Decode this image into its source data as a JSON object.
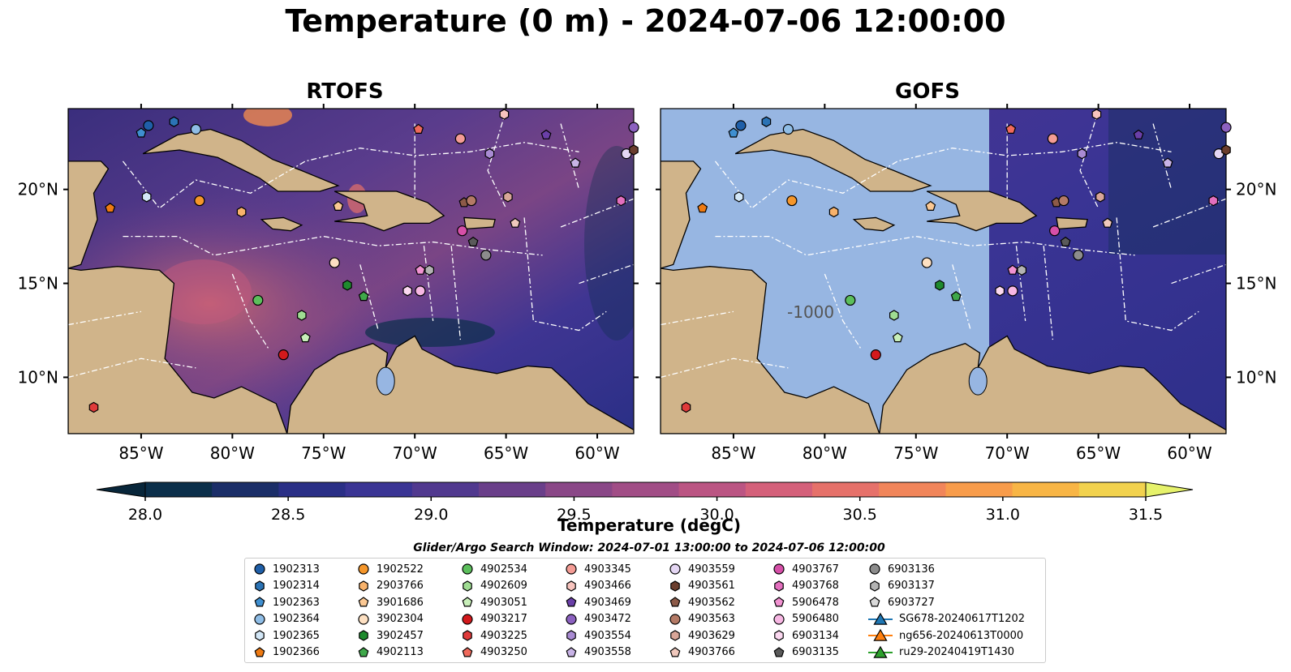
{
  "title": "Temperature (0 m) - 2024-07-06 12:00:00",
  "panels": [
    {
      "title": "RTOFS"
    },
    {
      "title": "GOFS"
    }
  ],
  "map": {
    "lon_ticks": [
      "85°W",
      "80°W",
      "75°W",
      "70°W",
      "65°W",
      "60°W"
    ],
    "lat_ticks": [
      "20°N",
      "15°N",
      "10°N"
    ],
    "extent": {
      "lon": [
        -89,
        -58
      ],
      "lat": [
        7,
        24.3
      ]
    },
    "bathymetry_label": "-1000"
  },
  "colorbar": {
    "label": "Temperature (degC)",
    "ticks": [
      "28.0",
      "28.5",
      "29.0",
      "29.5",
      "30.0",
      "30.5",
      "31.0",
      "31.5"
    ],
    "range": [
      28.0,
      31.5
    ],
    "colors": [
      "#0b2f4a",
      "#1b2e68",
      "#2a2f86",
      "#3a3494",
      "#51398f",
      "#6a3f8a",
      "#8a4787",
      "#a14d86",
      "#bb5583",
      "#d4607a",
      "#e6716a",
      "#f1855a",
      "#f89c4b",
      "#f8b545",
      "#f2d24e",
      "#e6f26b"
    ]
  },
  "search_window": "Glider/Argo Search Window: 2024-07-01 13:00:00 to 2024-07-06 12:00:00",
  "legend": [
    {
      "label": "1902313",
      "marker": "circle",
      "color": "#1f5fa8"
    },
    {
      "label": "1902314",
      "marker": "hexagon",
      "color": "#2b73b5"
    },
    {
      "label": "1902363",
      "marker": "pentagon",
      "color": "#3f8fd0"
    },
    {
      "label": "1902364",
      "marker": "circle",
      "color": "#8fbde6"
    },
    {
      "label": "1902365",
      "marker": "hexagon",
      "color": "#d3e7f7"
    },
    {
      "label": "1902366",
      "marker": "pentagon",
      "color": "#ee7a12"
    },
    {
      "label": "1902522",
      "marker": "circle",
      "color": "#f5962a"
    },
    {
      "label": "2903766",
      "marker": "hexagon",
      "color": "#f8b26b"
    },
    {
      "label": "3901686",
      "marker": "pentagon",
      "color": "#fbc893"
    },
    {
      "label": "3902304",
      "marker": "circle",
      "color": "#fde0c2"
    },
    {
      "label": "3902457",
      "marker": "hexagon",
      "color": "#1f8a2e"
    },
    {
      "label": "4902113",
      "marker": "pentagon",
      "color": "#3fa84a"
    },
    {
      "label": "4902534",
      "marker": "circle",
      "color": "#5cbf5c"
    },
    {
      "label": "4902609",
      "marker": "hexagon",
      "color": "#9fdc92"
    },
    {
      "label": "4903051",
      "marker": "pentagon",
      "color": "#c8efb9"
    },
    {
      "label": "4903217",
      "marker": "circle",
      "color": "#d3191c"
    },
    {
      "label": "4903225",
      "marker": "hexagon",
      "color": "#e03a3a"
    },
    {
      "label": "4903250",
      "marker": "pentagon",
      "color": "#f06a5c"
    },
    {
      "label": "4903345",
      "marker": "circle",
      "color": "#f49c95"
    },
    {
      "label": "4903466",
      "marker": "hexagon",
      "color": "#f8c4be"
    },
    {
      "label": "4903469",
      "marker": "pentagon",
      "color": "#6a3fa8"
    },
    {
      "label": "4903472",
      "marker": "circle",
      "color": "#8c61c0"
    },
    {
      "label": "4903554",
      "marker": "hexagon",
      "color": "#a98bd3"
    },
    {
      "label": "4903558",
      "marker": "pentagon",
      "color": "#c8b3e6"
    },
    {
      "label": "4903559",
      "marker": "circle",
      "color": "#e4d6f3"
    },
    {
      "label": "4903561",
      "marker": "hexagon",
      "color": "#6b3e2e"
    },
    {
      "label": "4903562",
      "marker": "pentagon",
      "color": "#8c5a48"
    },
    {
      "label": "4903563",
      "marker": "circle",
      "color": "#b47a66"
    },
    {
      "label": "4903629",
      "marker": "hexagon",
      "color": "#d8a698"
    },
    {
      "label": "4903766",
      "marker": "pentagon",
      "color": "#f0c8bc"
    },
    {
      "label": "4903767",
      "marker": "circle",
      "color": "#d64fa8"
    },
    {
      "label": "4903768",
      "marker": "hexagon",
      "color": "#e36fbe"
    },
    {
      "label": "5906478",
      "marker": "pentagon",
      "color": "#f192d1"
    },
    {
      "label": "5906480",
      "marker": "circle",
      "color": "#f7b7e3"
    },
    {
      "label": "6903134",
      "marker": "hexagon",
      "color": "#fbd8f0"
    },
    {
      "label": "6903135",
      "marker": "pentagon",
      "color": "#5a5a5a"
    },
    {
      "label": "6903136",
      "marker": "circle",
      "color": "#8c8c8c"
    },
    {
      "label": "6903137",
      "marker": "hexagon",
      "color": "#b3b3b3"
    },
    {
      "label": "6903727",
      "marker": "pentagon",
      "color": "#d9d9d9"
    },
    {
      "label": "SG678-20240617T1202",
      "marker": "triangle",
      "color": "#1f77b4"
    },
    {
      "label": "ng656-20240613T0000",
      "marker": "triangle",
      "color": "#ff7f0e"
    },
    {
      "label": "ru29-20240419T1430",
      "marker": "triangle",
      "color": "#2ca02c"
    }
  ],
  "platforms": [
    {
      "ref": 0,
      "lon": -84.6,
      "lat": 23.4
    },
    {
      "ref": 1,
      "lon": -83.2,
      "lat": 23.6
    },
    {
      "ref": 2,
      "lon": -85.0,
      "lat": 23.0
    },
    {
      "ref": 3,
      "lon": -82.0,
      "lat": 23.2
    },
    {
      "ref": 4,
      "lon": -84.7,
      "lat": 19.6
    },
    {
      "ref": 5,
      "lon": -86.7,
      "lat": 19.0
    },
    {
      "ref": 6,
      "lon": -81.8,
      "lat": 19.4
    },
    {
      "ref": 7,
      "lon": -79.5,
      "lat": 18.8
    },
    {
      "ref": 8,
      "lon": -74.2,
      "lat": 19.1
    },
    {
      "ref": 9,
      "lon": -74.4,
      "lat": 16.1
    },
    {
      "ref": 10,
      "lon": -73.7,
      "lat": 14.9
    },
    {
      "ref": 11,
      "lon": -72.8,
      "lat": 14.3
    },
    {
      "ref": 12,
      "lon": -78.6,
      "lat": 14.1
    },
    {
      "ref": 13,
      "lon": -76.2,
      "lat": 13.3
    },
    {
      "ref": 14,
      "lon": -76.0,
      "lat": 12.1
    },
    {
      "ref": 15,
      "lon": -77.2,
      "lat": 11.2
    },
    {
      "ref": 16,
      "lon": -87.6,
      "lat": 8.4
    },
    {
      "ref": 17,
      "lon": -69.8,
      "lat": 23.2
    },
    {
      "ref": 18,
      "lon": -67.5,
      "lat": 22.7
    },
    {
      "ref": 19,
      "lon": -65.1,
      "lat": 24.0
    },
    {
      "ref": 20,
      "lon": -62.8,
      "lat": 22.9
    },
    {
      "ref": 21,
      "lon": -58.0,
      "lat": 23.3
    },
    {
      "ref": 22,
      "lon": -65.9,
      "lat": 21.9
    },
    {
      "ref": 23,
      "lon": -61.2,
      "lat": 21.4
    },
    {
      "ref": 24,
      "lon": -58.4,
      "lat": 21.9
    },
    {
      "ref": 25,
      "lon": -58.0,
      "lat": 22.1
    },
    {
      "ref": 26,
      "lon": -67.3,
      "lat": 19.3
    },
    {
      "ref": 27,
      "lon": -66.9,
      "lat": 19.4
    },
    {
      "ref": 28,
      "lon": -64.9,
      "lat": 19.6
    },
    {
      "ref": 29,
      "lon": -64.5,
      "lat": 18.2
    },
    {
      "ref": 30,
      "lon": -67.4,
      "lat": 17.8
    },
    {
      "ref": 31,
      "lon": -58.7,
      "lat": 19.4
    },
    {
      "ref": 32,
      "lon": -69.7,
      "lat": 15.7
    },
    {
      "ref": 33,
      "lon": -69.7,
      "lat": 14.6
    },
    {
      "ref": 34,
      "lon": -70.4,
      "lat": 14.6
    },
    {
      "ref": 35,
      "lon": -66.8,
      "lat": 17.2
    },
    {
      "ref": 36,
      "lon": -66.1,
      "lat": 16.5
    },
    {
      "ref": 37,
      "lon": -69.2,
      "lat": 15.7
    }
  ]
}
